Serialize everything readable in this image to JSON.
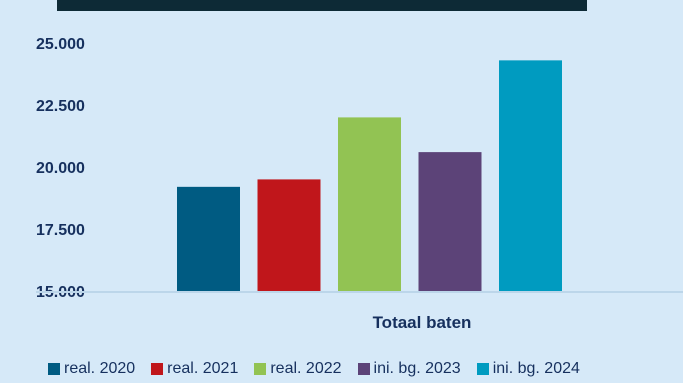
{
  "chart_data": {
    "type": "bar",
    "title": "",
    "xlabel": "",
    "ylabel": "",
    "categories": [
      "Totaal baten"
    ],
    "ylim": [
      15000,
      25000
    ],
    "yticks": [
      "15.000",
      "17.500",
      "20.000",
      "22.500",
      "25.000"
    ],
    "ytick_values": [
      15000,
      17500,
      20000,
      22500,
      25000
    ],
    "legend_position": "bottom",
    "grid": false,
    "series": [
      {
        "name": "real. 2020",
        "values": [
          19200
        ],
        "color": "#005b82"
      },
      {
        "name": "real. 2021",
        "values": [
          19500
        ],
        "color": "#c0161b"
      },
      {
        "name": "real. 2022",
        "values": [
          22000
        ],
        "color": "#92c353"
      },
      {
        "name": "ini. bg. 2023",
        "values": [
          20600
        ],
        "color": "#5c4378"
      },
      {
        "name": "ini. bg. 2024",
        "values": [
          24300
        ],
        "color": "#009bc0"
      }
    ]
  }
}
